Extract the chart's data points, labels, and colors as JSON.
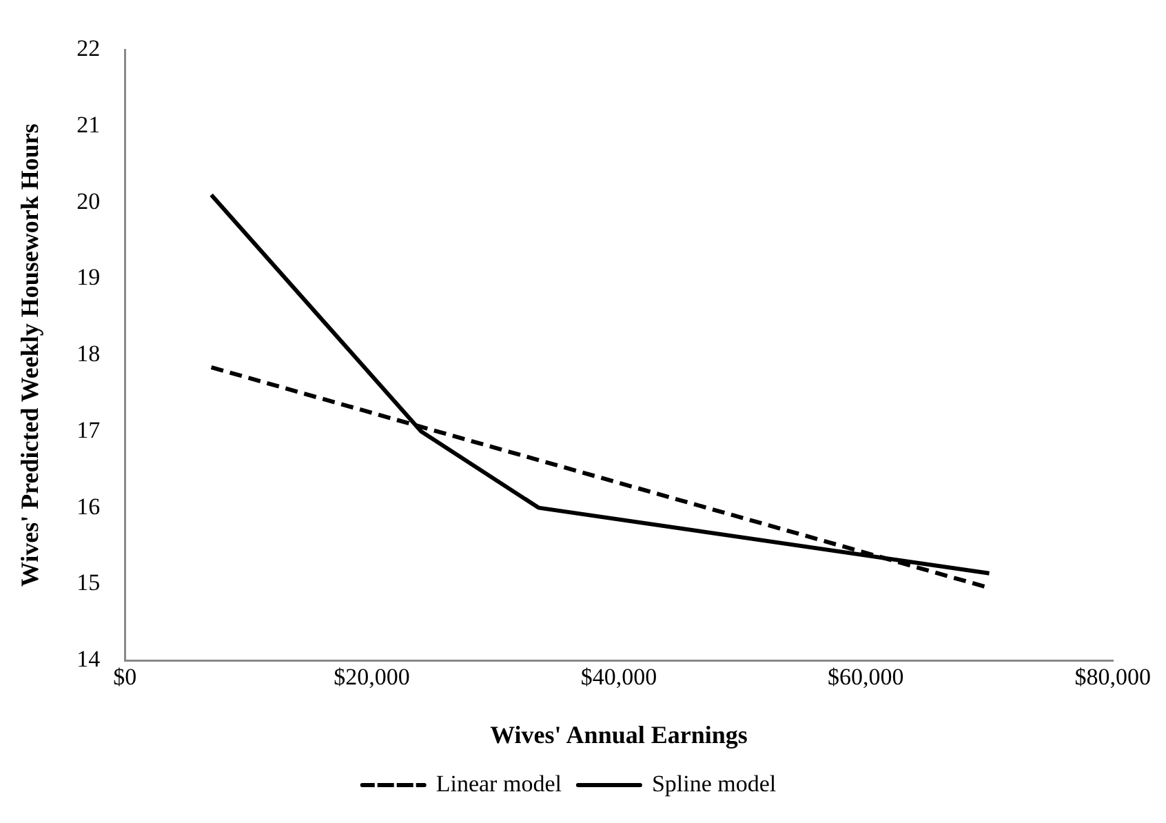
{
  "chart_data": {
    "type": "line",
    "xlabel": "Wives' Annual Earnings",
    "ylabel": "Wives' Predicted Weekly Housework Hours",
    "series": [
      {
        "name": "Linear model",
        "color": "#000000",
        "line_style": "dashed",
        "x": [
          7000,
          70000
        ],
        "values": [
          17.84,
          14.95
        ]
      },
      {
        "name": "Spline model",
        "color": "#000000",
        "line_style": "solid",
        "x": [
          7000,
          24000,
          33500,
          70000
        ],
        "values": [
          20.1,
          17.0,
          16.0,
          15.14
        ]
      }
    ],
    "xlim": [
      0,
      80000
    ],
    "xticks": [
      {
        "value": 0,
        "label": "$0"
      },
      {
        "value": 20000,
        "label": "$20,000"
      },
      {
        "value": 40000,
        "label": "$40,000"
      },
      {
        "value": 60000,
        "label": "$60,000"
      },
      {
        "value": 80000,
        "label": "$80,000"
      }
    ],
    "ylim": [
      14,
      22
    ],
    "yticks": [
      14,
      15,
      16,
      17,
      18,
      19,
      20,
      21,
      22
    ],
    "grid": false,
    "legend": "bottom",
    "marker": "none"
  }
}
